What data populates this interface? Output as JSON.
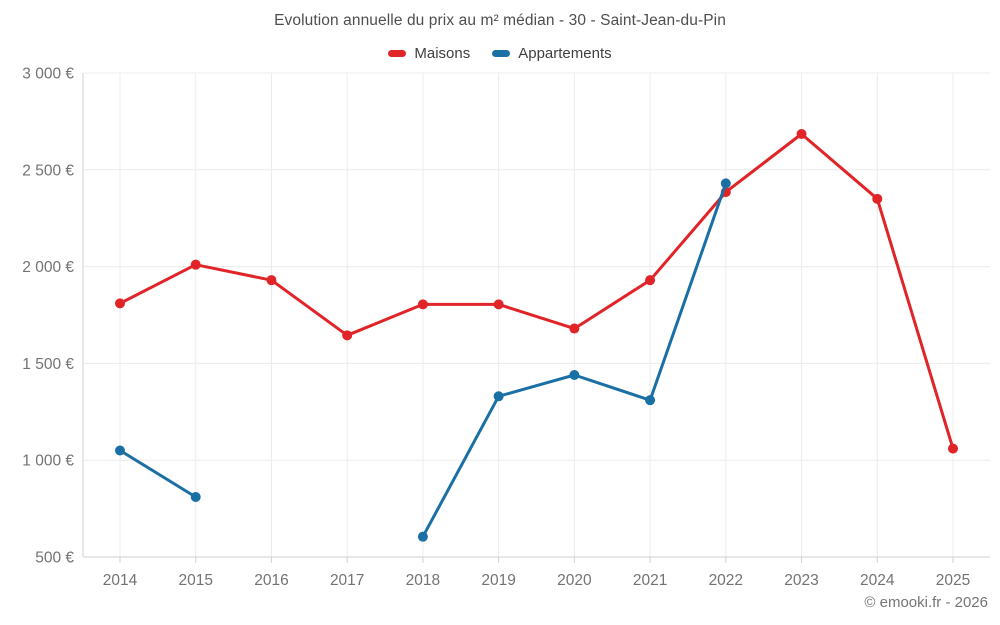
{
  "chart_data": {
    "type": "line",
    "title": "Evolution annuelle du prix au m² médian - 30 - Saint-Jean-du-Pin",
    "xlabel": "",
    "ylabel": "",
    "categories": [
      "2014",
      "2015",
      "2016",
      "2017",
      "2018",
      "2019",
      "2020",
      "2021",
      "2022",
      "2023",
      "2024",
      "2025"
    ],
    "series": [
      {
        "name": "Maisons",
        "color": "#e02428",
        "values": [
          1810,
          2010,
          1930,
          1645,
          1805,
          1805,
          1680,
          1930,
          2385,
          2685,
          2350,
          1060
        ]
      },
      {
        "name": "Appartements",
        "color": "#1a6fa5",
        "values": [
          1050,
          810,
          null,
          null,
          605,
          1330,
          1440,
          1310,
          2430,
          null,
          null,
          null
        ]
      }
    ],
    "ylim": [
      500,
      3000
    ],
    "ytick_step": 500,
    "yticks": [
      500,
      1000,
      1500,
      2000,
      2500,
      3000
    ],
    "ytick_labels": [
      "500 €",
      "1 000 €",
      "1 500 €",
      "2 000 €",
      "2 500 €",
      "3 000 €"
    ],
    "grid": true,
    "legend_position": "top",
    "marker": "circle",
    "footer": "© emooki.fr - 2026"
  }
}
